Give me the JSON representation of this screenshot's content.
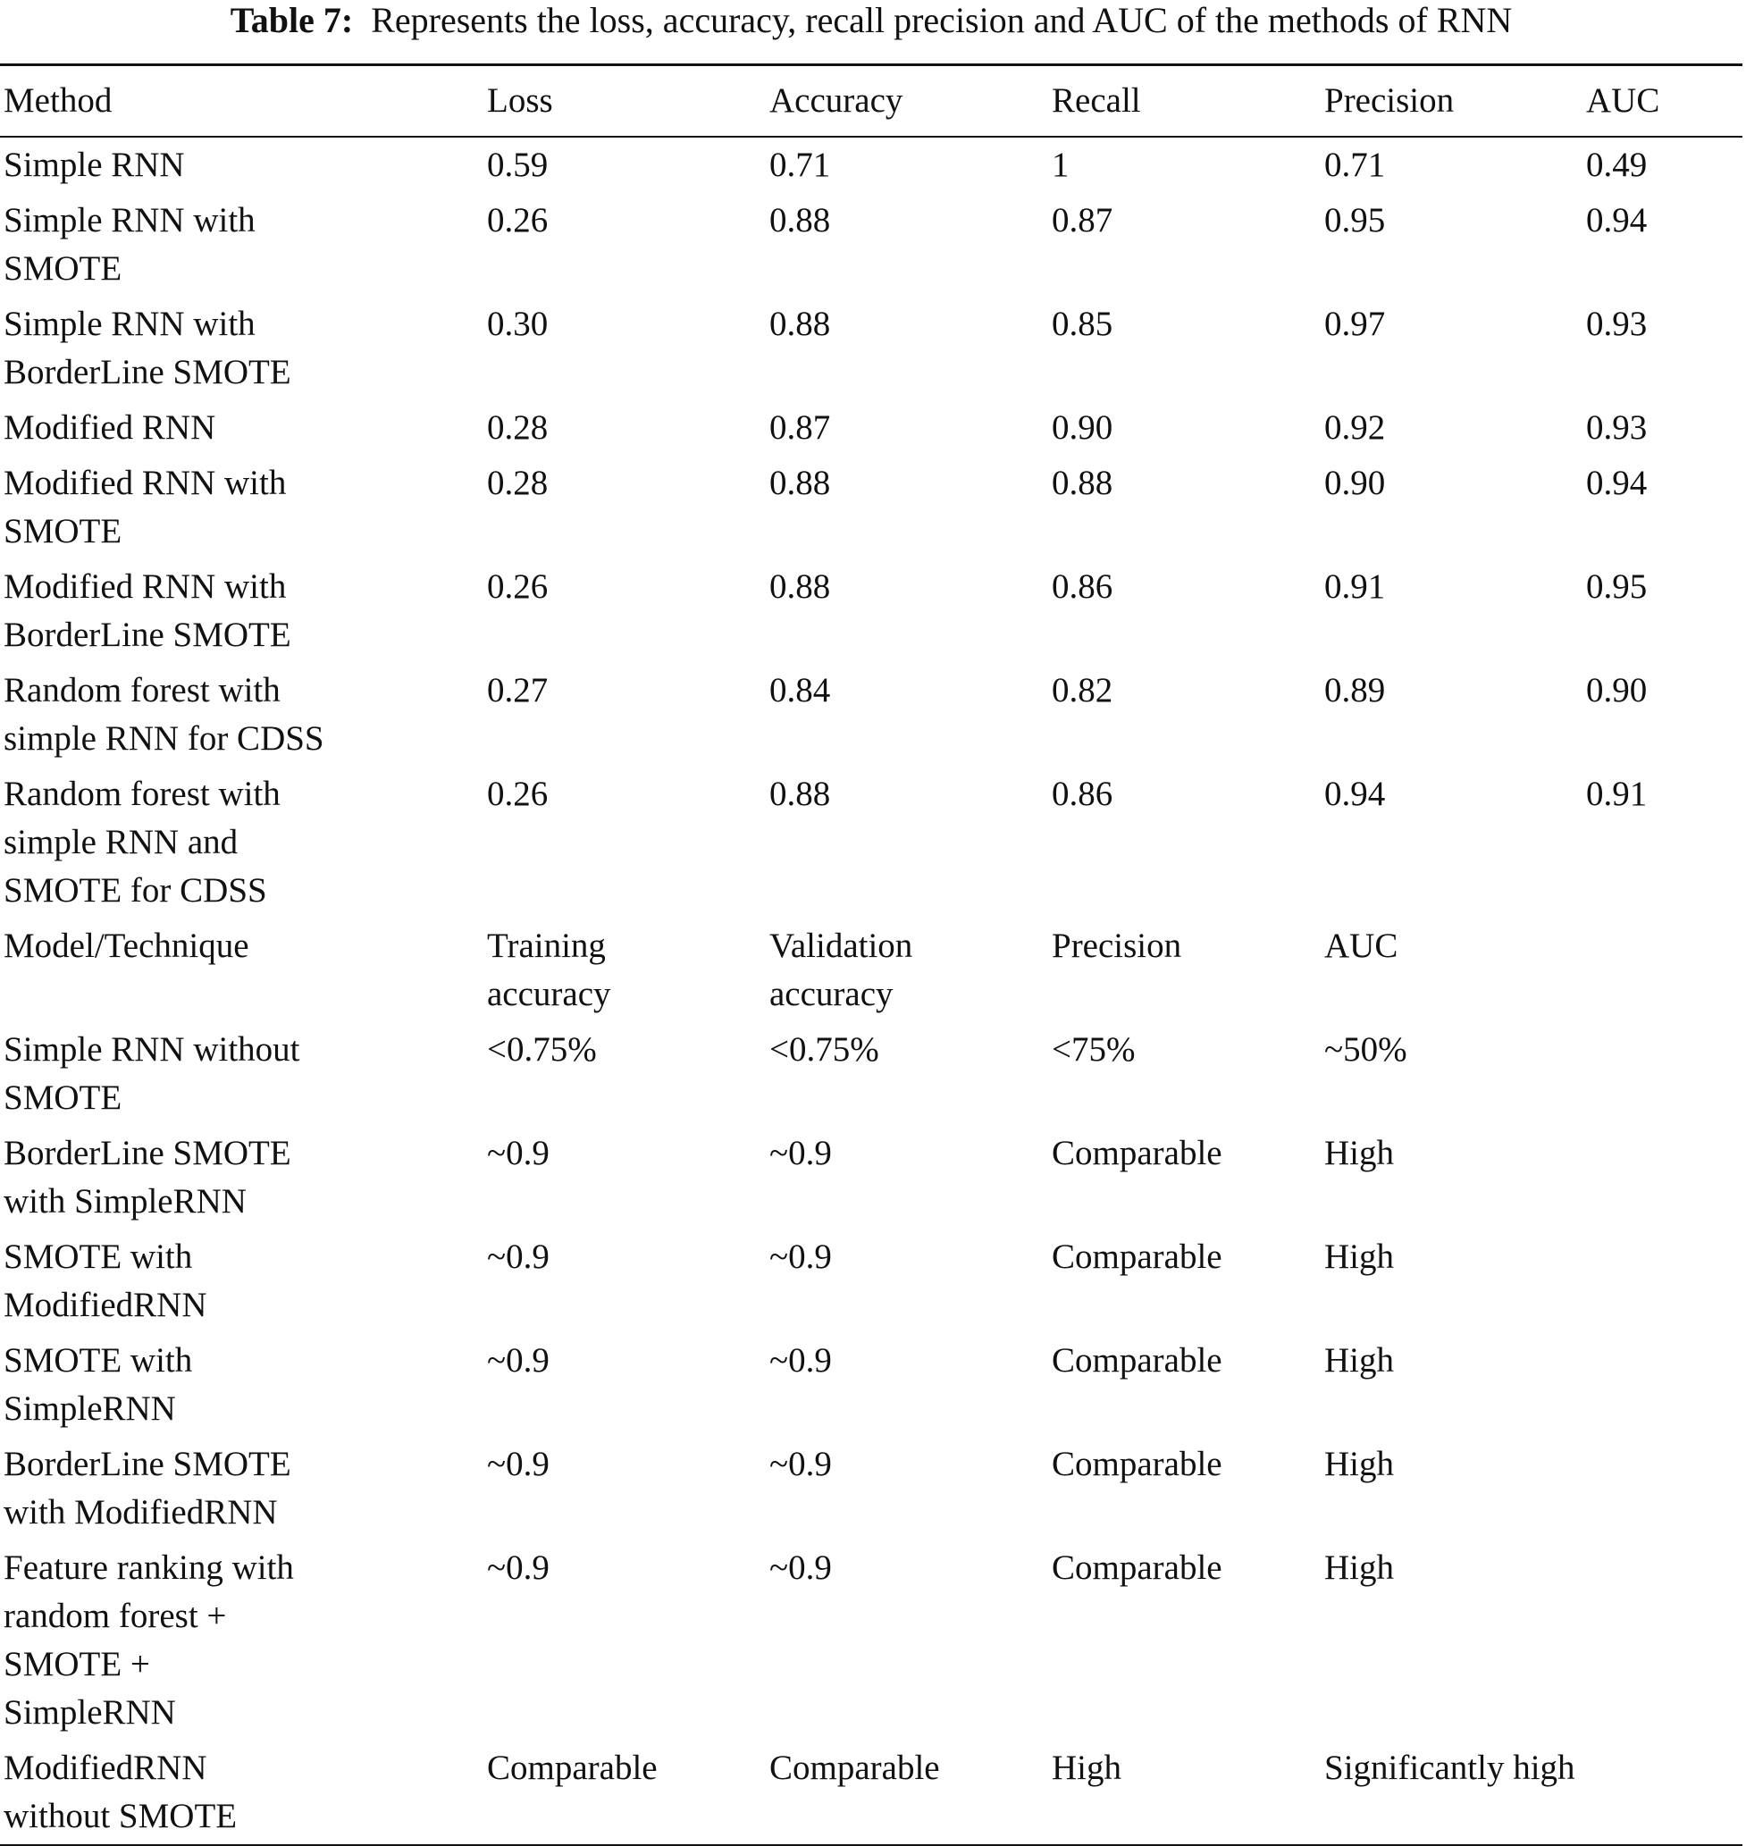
{
  "caption": {
    "label": "Table 7:",
    "text": "Represents the loss, accuracy, recall precision and AUC of the methods of RNN"
  },
  "table": {
    "headers": [
      "Method",
      "Loss",
      "Accuracy",
      "Recall",
      "Precision",
      "AUC"
    ],
    "rows": [
      [
        "Simple RNN",
        "0.59",
        "0.71",
        "1",
        "0.71",
        "0.49"
      ],
      [
        "Simple RNN with\nSMOTE",
        "0.26",
        "0.88",
        "0.87",
        "0.95",
        "0.94"
      ],
      [
        "Simple RNN with\nBorderLine SMOTE",
        "0.30",
        "0.88",
        "0.85",
        "0.97",
        "0.93"
      ],
      [
        "Modified RNN",
        "0.28",
        "0.87",
        "0.90",
        "0.92",
        "0.93"
      ],
      [
        "Modified RNN with\nSMOTE",
        "0.28",
        "0.88",
        "0.88",
        "0.90",
        "0.94"
      ],
      [
        "Modified RNN with\nBorderLine SMOTE",
        "0.26",
        "0.88",
        "0.86",
        "0.91",
        "0.95"
      ],
      [
        "Random forest with\nsimple RNN for CDSS",
        "0.27",
        "0.84",
        "0.82",
        "0.89",
        "0.90"
      ],
      [
        "Random forest with\nsimple RNN and\nSMOTE for CDSS",
        "0.26",
        "0.88",
        "0.86",
        "0.94",
        "0.91"
      ],
      [
        "Model/Technique",
        "Training\naccuracy",
        "Validation\naccuracy",
        "Precision",
        "AUC",
        ""
      ],
      [
        "Simple RNN without\nSMOTE",
        "<0.75%",
        "<0.75%",
        "<75%",
        "~50%",
        ""
      ],
      [
        "BorderLine SMOTE\nwith SimpleRNN",
        "~0.9",
        "~0.9",
        "Comparable",
        "High",
        ""
      ],
      [
        "SMOTE with\nModifiedRNN",
        "~0.9",
        "~0.9",
        "Comparable",
        "High",
        ""
      ],
      [
        "SMOTE with\nSimpleRNN",
        "~0.9",
        "~0.9",
        "Comparable",
        "High",
        ""
      ],
      [
        "BorderLine SMOTE\nwith ModifiedRNN",
        "~0.9",
        "~0.9",
        "Comparable",
        "High",
        ""
      ],
      [
        "Feature ranking with\nrandom forest +\nSMOTE +\nSimpleRNN",
        "~0.9",
        "~0.9",
        "Comparable",
        "High",
        ""
      ],
      [
        "ModifiedRNN\nwithout SMOTE",
        "Comparable",
        "Comparable",
        "High",
        "Significantly high",
        ""
      ]
    ]
  }
}
